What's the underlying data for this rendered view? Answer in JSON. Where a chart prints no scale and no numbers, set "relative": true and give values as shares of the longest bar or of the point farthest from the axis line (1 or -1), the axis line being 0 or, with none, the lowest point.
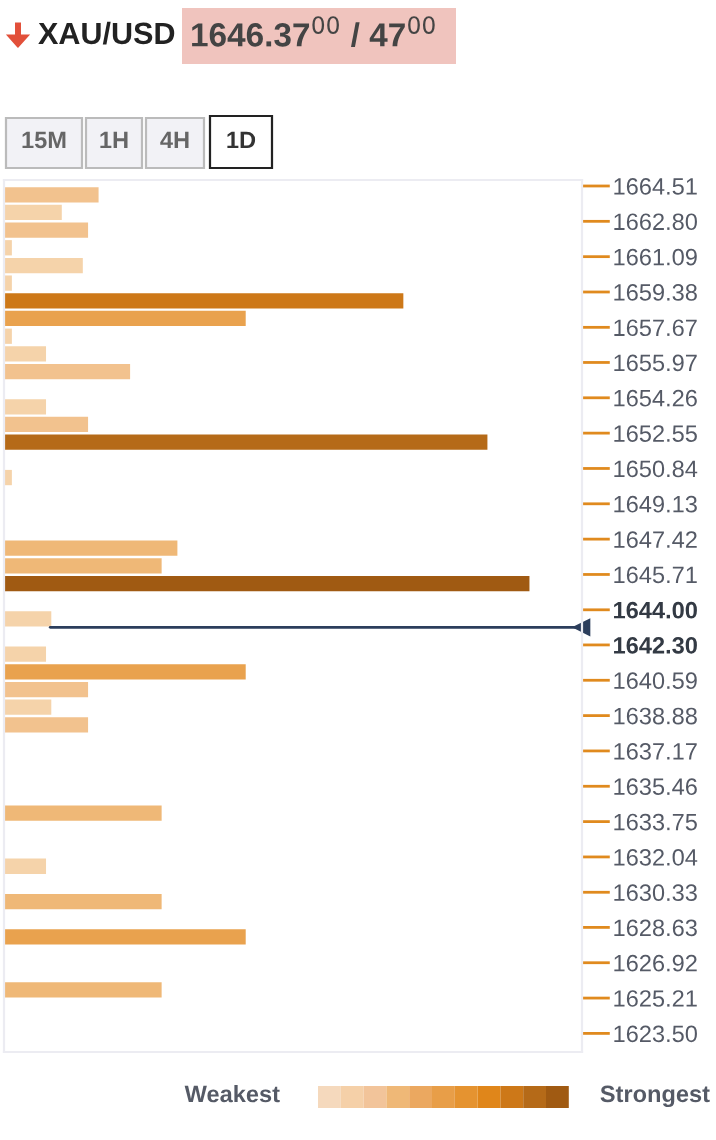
{
  "chart_data": {
    "type": "bar",
    "orientation": "horizontal",
    "relative": true,
    "title": "XAU/USD",
    "subtitle": "1646.37$^{00}$ / 47$^{00}$",
    "annotations": [
      "15M",
      "1H",
      "4H",
      "1D",
      "Weakest",
      "Strongest"
    ],
    "x": [
      1664.08,
      1663.23,
      1662.37,
      1661.52,
      1660.66,
      1659.81,
      1658.95,
      1658.1,
      1657.24,
      1656.39,
      1655.53,
      1653.82,
      1652.97,
      1652.11,
      1650.4,
      1646.98,
      1646.13,
      1645.27,
      1643.56,
      1641.85,
      1641.0,
      1640.14,
      1639.29,
      1638.43,
      1634.16,
      1631.59,
      1629.88,
      1628.17,
      1625.61
    ],
    "values": [
      0.18,
      0.11,
      0.16,
      0.015,
      0.15,
      0.015,
      0.76,
      0.46,
      0.015,
      0.08,
      0.24,
      0.08,
      0.16,
      0.92,
      0.015,
      0.33,
      0.3,
      1,
      0.09,
      0.08,
      0.46,
      0.16,
      0.09,
      0.16,
      0.3,
      0.08,
      0.3,
      0.46,
      0.3
    ],
    "colors": [
      "#f2c28e",
      "#f5d3aa",
      "#f2c28e",
      "#f5d3aa",
      "#f5d3aa",
      "#f5d3aa",
      "#cd7818",
      "#e9a24e",
      "#f5d3aa",
      "#f5d3aa",
      "#f2c28e",
      "#f5d3aa",
      "#f2c28e",
      "#b56a18",
      "#f5d3aa",
      "#efb877",
      "#efb877",
      "#a05a12",
      "#f5d3aa",
      "#f5d3aa",
      "#e9a24e",
      "#f2c28e",
      "#f5d3aa",
      "#f2c28e",
      "#efb877",
      "#f5d3aa",
      "#efb877",
      "#e9a24e",
      "#efb877"
    ],
    "ylim": [
      1622.6,
      1664.8
    ],
    "yticks": [
      1664.51,
      {
        "value": 1662.8,
        "label": "1662.80"
      },
      1661.09,
      1659.38,
      1657.67,
      1655.97,
      1654.26,
      1652.55,
      1650.84,
      1649.13,
      1647.42,
      1645.71,
      {
        "value": 1644.0,
        "label": "1644.00"
      },
      {
        "value": 1642.3,
        "label": "1642.30"
      },
      1640.59,
      1638.88,
      1637.17,
      1635.46,
      1633.75,
      1632.04,
      1630.33,
      1628.63,
      1626.92,
      1625.21,
      {
        "value": 1623.5,
        "label": "1623.50"
      }
    ],
    "ref_lines": [
      {
        "axis": "y",
        "value": 1643.15,
        "color": "#2c3e5c"
      }
    ],
    "grid": false,
    "legend": false
  }
}
